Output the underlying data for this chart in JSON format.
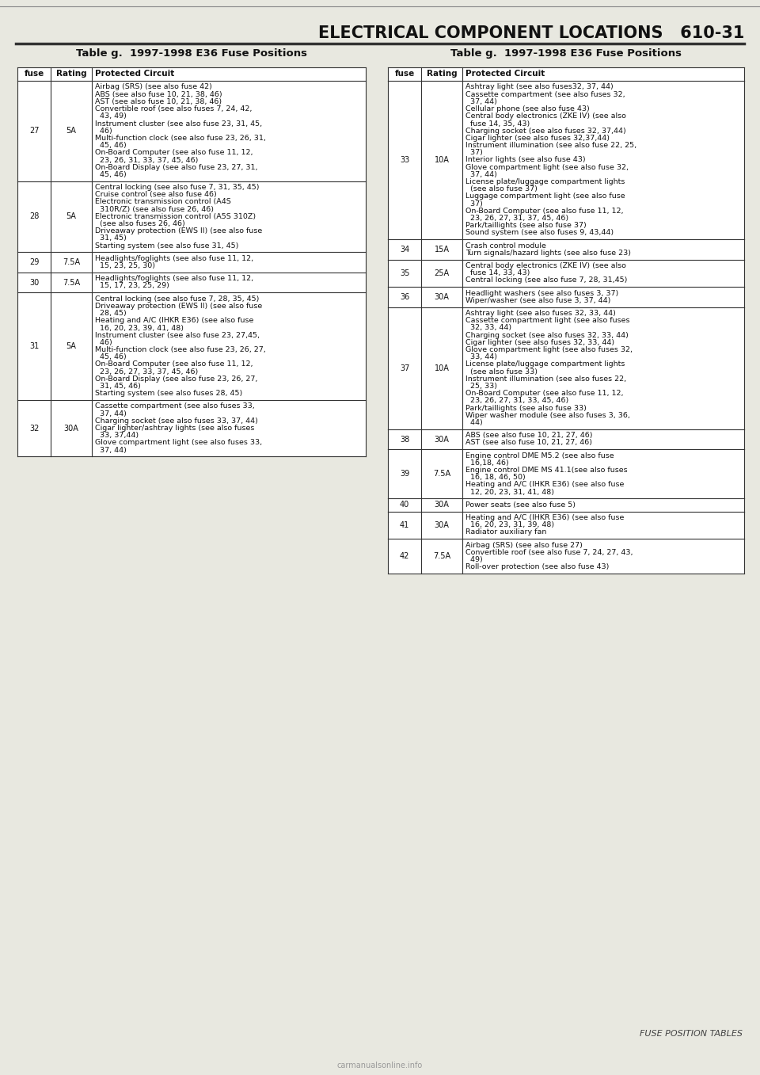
{
  "page_title_left": "ELECTRICAL COMPONENT LOCATIONS",
  "page_title_right": "610-31",
  "table_title": "Table g.  1997-1998 E36 Fuse Positions",
  "col_headers": [
    "fuse",
    "Rating",
    "Protected Circuit"
  ],
  "footer": "Fuse Position Tables",
  "left_rows": [
    {
      "fuse": "27",
      "rating": "5A",
      "circuit": "Airbag (SRS) (see also fuse 42)\nABS (see also fuse 10, 21, 38, 46)\nAST (see also fuse 10, 21, 38, 46)\nConvertible roof (see also fuses 7, 24, 42,\n  43, 49)\nInstrument cluster (see also fuse 23, 31, 45,\n  46)\nMulti-function clock (see also fuse 23, 26, 31,\n  45, 46)\nOn-Board Computer (see also fuse 11, 12,\n  23, 26, 31, 33, 37, 45, 46)\nOn-Board Display (see also fuse 23, 27, 31,\n  45, 46)"
    },
    {
      "fuse": "28",
      "rating": "5A",
      "circuit": "Central locking (see also fuse 7, 31, 35, 45)\nCruise control (see also fuse 46)\nElectronic transmission control (A4S\n  310R/Z) (see also fuse 26, 46)\nElectronic transmission control (A5S 310Z)\n  (see also fuses 26, 46)\nDriveaway protection (EWS II) (see also fuse\n  31, 45)\nStarting system (see also fuse 31, 45)"
    },
    {
      "fuse": "29",
      "rating": "7.5A",
      "circuit": "Headlights/foglights (see also fuse 11, 12,\n  15, 23, 25, 30)"
    },
    {
      "fuse": "30",
      "rating": "7.5A",
      "circuit": "Headlights/foglights (see also fuse 11, 12,\n  15, 17, 23, 25, 29)"
    },
    {
      "fuse": "31",
      "rating": "5A",
      "circuit": "Central locking (see also fuse 7, 28, 35, 45)\nDriveaway protection (EWS II) (see also fuse\n  28, 45)\nHeating and A/C (IHKR E36) (see also fuse\n  16, 20, 23, 39, 41, 48)\nInstrument cluster (see also fuse 23, 27,45,\n  46)\nMulti-function clock (see also fuse 23, 26, 27,\n  45, 46)\nOn-Board Computer (see also fuse 11, 12,\n  23, 26, 27, 33, 37, 45, 46)\nOn-Board Display (see also fuse 23, 26, 27,\n  31, 45, 46)\nStarting system (see also fuses 28, 45)"
    },
    {
      "fuse": "32",
      "rating": "30A",
      "circuit": "Cassette compartment (see also fuses 33,\n  37, 44)\nCharging socket (see also fuses 33, 37, 44)\nCigar lighter/ashtray lights (see also fuses\n  33, 37,44)\nGlove compartment light (see also fuses 33,\n  37, 44)"
    }
  ],
  "right_rows": [
    {
      "fuse": "33",
      "rating": "10A",
      "circuit": "Ashtray light (see also fuses32, 37, 44)\nCassette compartment (see also fuses 32,\n  37, 44)\nCellular phone (see also fuse 43)\nCentral body electronics (ZKE IV) (see also\n  fuse 14, 35, 43)\nCharging socket (see also fuses 32, 37,44)\nCigar lighter (see also fuses 32,37,44)\nInstrument illumination (see also fuse 22, 25,\n  37)\nInterior lights (see also fuse 43)\nGlove compartment light (see also fuse 32,\n  37, 44)\nLicense plate/luggage compartment lights\n  (see also fuse 37)\nLuggage compartment light (see also fuse\n  37)\nOn-Board Computer (see also fuse 11, 12,\n  23, 26, 27, 31, 37, 45, 46)\nPark/taillights (see also fuse 37)\nSound system (see also fuses 9, 43,44)"
    },
    {
      "fuse": "34",
      "rating": "15A",
      "circuit": "Crash control module\nTurn signals/hazard lights (see also fuse 23)"
    },
    {
      "fuse": "35",
      "rating": "25A",
      "circuit": "Central body electronics (ZKE IV) (see also\n  fuse 14, 33, 43)\nCentral locking (see also fuse 7, 28, 31,45)"
    },
    {
      "fuse": "36",
      "rating": "30A",
      "circuit": "Headlight washers (see also fuses 3, 37)\nWiper/washer (see also fuse 3, 37, 44)"
    },
    {
      "fuse": "37",
      "rating": "10A",
      "circuit": "Ashtray light (see also fuses 32, 33, 44)\nCassette compartment light (see also fuses\n  32, 33, 44)\nCharging socket (see also fuses 32, 33, 44)\nCigar lighter (see also fuses 32, 33, 44)\nGlove compartment light (see also fuses 32,\n  33, 44)\nLicense plate/luggage compartment lights\n  (see also fuse 33)\nInstrument illumination (see also fuses 22,\n  25, 33)\nOn-Board Computer (see also fuse 11, 12,\n  23, 26, 27, 31, 33, 45, 46)\nPark/taillights (see also fuse 33)\nWiper washer module (see also fuses 3, 36,\n  44)"
    },
    {
      "fuse": "38",
      "rating": "30A",
      "circuit": "ABS (see also fuse 10, 21, 27, 46)\nAST (see also fuse 10, 21, 27, 46)"
    },
    {
      "fuse": "39",
      "rating": "7.5A",
      "circuit": "Engine control DME M5.2 (see also fuse\n  16,18, 46)\nEngine control DME MS 41.1(see also fuses\n  16, 18, 46, 50)\nHeating and A/C (IHKR E36) (see also fuse\n  12, 20, 23, 31, 41, 48)"
    },
    {
      "fuse": "40",
      "rating": "30A",
      "circuit": "Power seats (see also fuse 5)"
    },
    {
      "fuse": "41",
      "rating": "30A",
      "circuit": "Heating and A/C (IHKR E36) (see also fuse\n  16, 20, 23, 31, 39, 48)\nRadiator auxiliary fan"
    },
    {
      "fuse": "42",
      "rating": "7.5A",
      "circuit": "Airbag (SRS) (see also fuse 27)\nConvertible roof (see also fuse 7, 24, 27, 43,\n  49)\nRoll-over protection (see also fuse 43)"
    }
  ],
  "bg_color": "#e8e8e0",
  "table_bg": "#ffffff",
  "border_color": "#333333",
  "text_color": "#111111"
}
